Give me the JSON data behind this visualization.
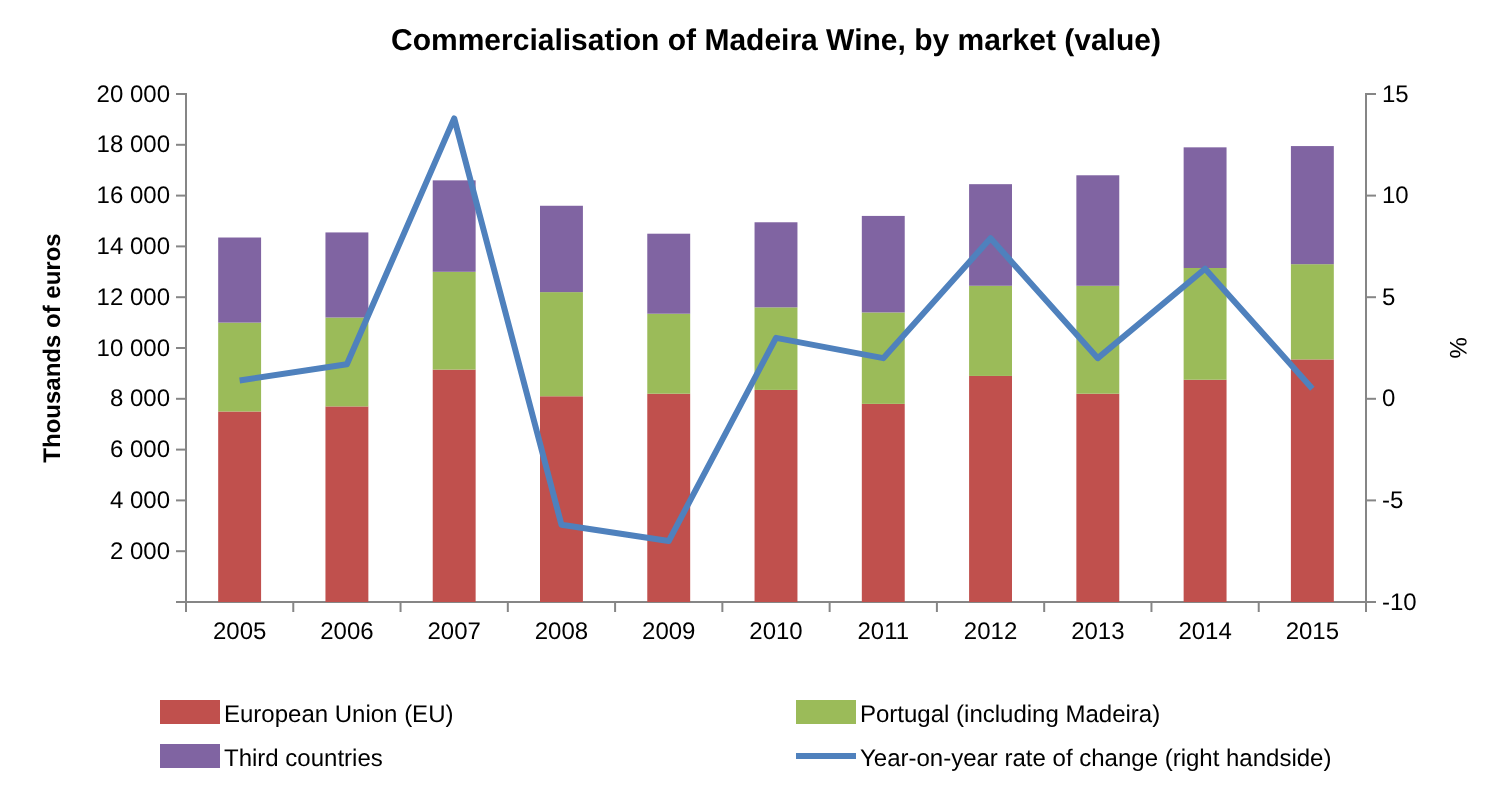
{
  "chart_data": {
    "type": "bar",
    "title": "Commercialisation  of  Madeira Wine, by market (value)",
    "ylabel": "Thousands of euros",
    "y2label": "%",
    "categories": [
      "2005",
      "2006",
      "2007",
      "2008",
      "2009",
      "2010",
      "2011",
      "2012",
      "2013",
      "2014",
      "2015"
    ],
    "stacked": true,
    "series": [
      {
        "name": "European Union (EU)",
        "color": "#c0504d",
        "values": [
          7500,
          7700,
          9150,
          8100,
          8200,
          8350,
          7800,
          8900,
          8200,
          8750,
          9550
        ]
      },
      {
        "name": "Portugal (including Madeira)",
        "color": "#9bbb59",
        "values": [
          3500,
          3500,
          3850,
          4100,
          3150,
          3250,
          3600,
          3550,
          4250,
          4400,
          3750
        ]
      },
      {
        "name": "Third countries",
        "color": "#8064a2",
        "values": [
          3350,
          3350,
          3600,
          3400,
          3150,
          3350,
          3800,
          4000,
          4350,
          4750,
          4650
        ]
      },
      {
        "name": "Year-on-year rate of change (right handside)",
        "type": "line",
        "axis": "y2",
        "color": "#4f81bd",
        "values": [
          0.9,
          1.7,
          13.8,
          -6.2,
          -7.0,
          3.0,
          2.0,
          7.9,
          2.0,
          6.4,
          0.5
        ]
      }
    ],
    "ylim": [
      0,
      20000
    ],
    "yticks": [
      {
        "value": 0,
        "label": null
      },
      {
        "value": 2000,
        "label": "2 000"
      },
      {
        "value": 4000,
        "label": "4 000"
      },
      {
        "value": 6000,
        "label": "6 000"
      },
      {
        "value": 8000,
        "label": "8 000"
      },
      {
        "value": 10000,
        "label": "10 000"
      },
      {
        "value": 12000,
        "label": "12 000"
      },
      {
        "value": 14000,
        "label": "14 000"
      },
      {
        "value": 16000,
        "label": "16 000"
      },
      {
        "value": 18000,
        "label": "18 000"
      },
      {
        "value": 20000,
        "label": "20 000"
      }
    ],
    "y2lim": [
      -10,
      15
    ],
    "y2ticks": [
      -10,
      -5,
      0,
      5,
      10,
      15
    ],
    "grid": false,
    "legend": "bottom",
    "line_style": "solid",
    "marker": "none"
  }
}
